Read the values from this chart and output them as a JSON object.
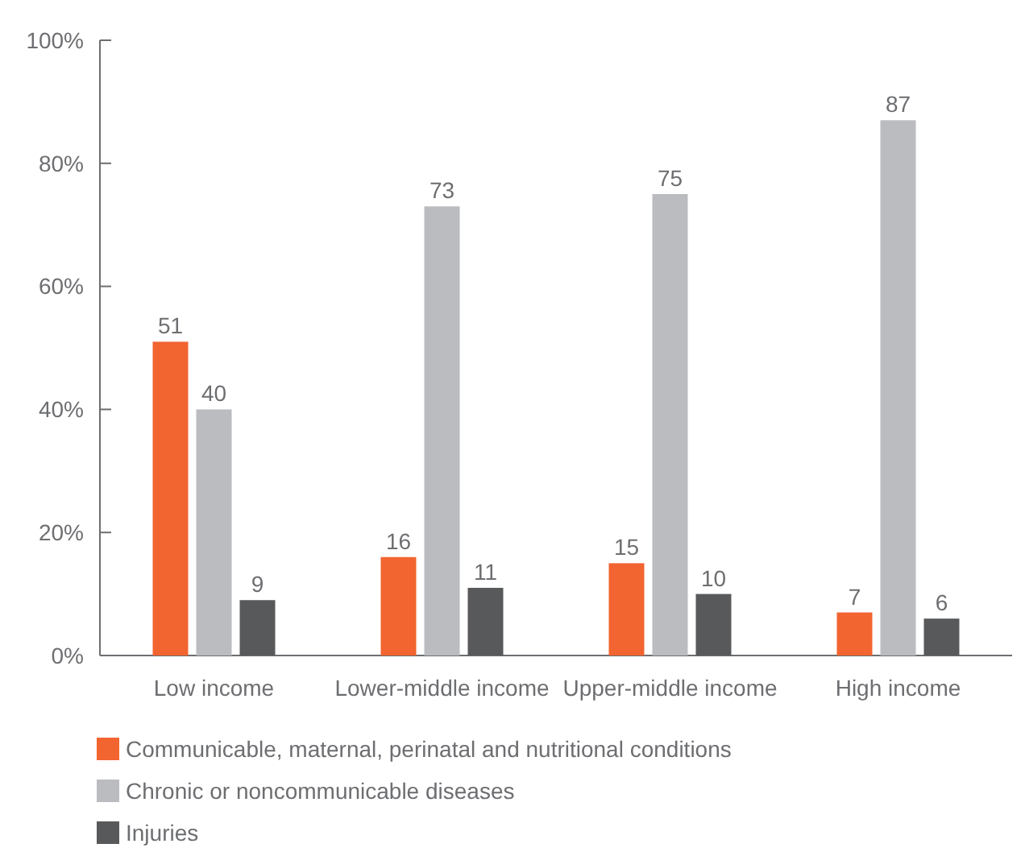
{
  "chart_data": {
    "type": "bar",
    "categories": [
      "Low income",
      "Lower-middle income",
      "Upper-middle income",
      "High income"
    ],
    "series": [
      {
        "name": "Communicable, maternal, perinatal and nutritional conditions",
        "color": "#f26430",
        "values": [
          51,
          16,
          15,
          7
        ]
      },
      {
        "name": "Chronic or noncommunicable diseases",
        "color": "#bbbcbf",
        "values": [
          40,
          73,
          75,
          87
        ]
      },
      {
        "name": "Injuries",
        "color": "#58595b",
        "values": [
          9,
          11,
          10,
          6
        ]
      }
    ],
    "ylim": [
      0,
      100
    ],
    "yticks": [
      {
        "value": 0,
        "label": "0%"
      },
      {
        "value": 20,
        "label": "20%"
      },
      {
        "value": 40,
        "label": "40%"
      },
      {
        "value": 60,
        "label": "60%"
      },
      {
        "value": 80,
        "label": "80%"
      },
      {
        "value": 100,
        "label": "100%"
      }
    ],
    "data_labels": true,
    "legend": "bottom",
    "grid": false
  }
}
